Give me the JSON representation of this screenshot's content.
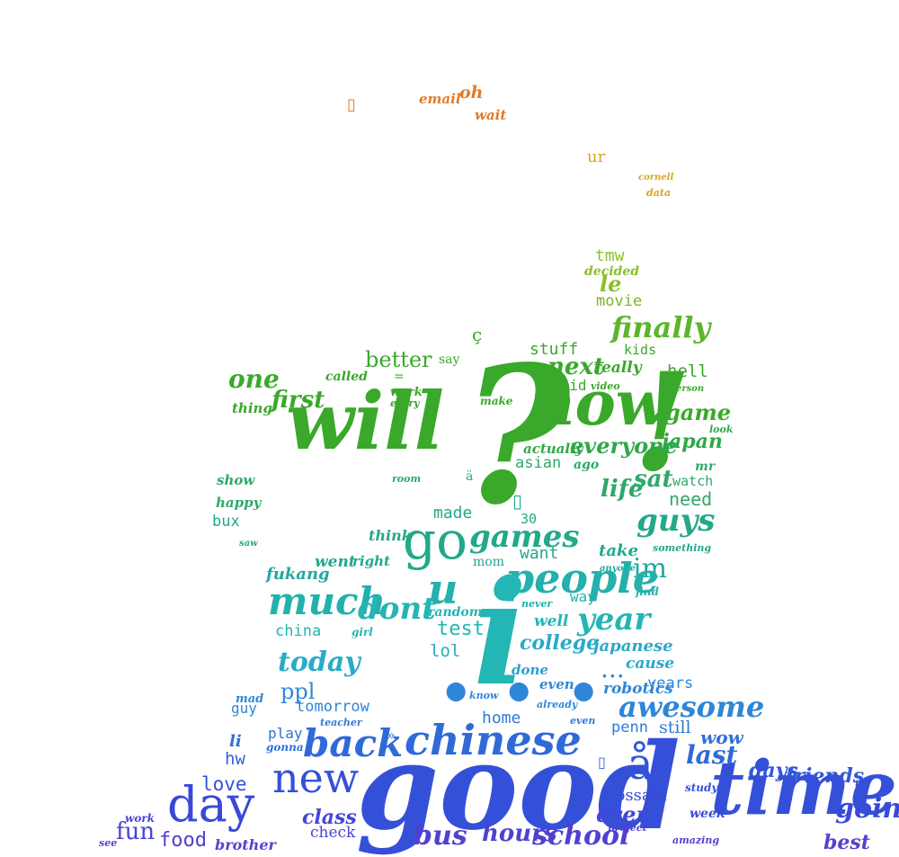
{
  "palette": {
    "orange": "#e07b2a",
    "gold": "#d9a51e",
    "lime": "#8bbf2a",
    "green": "#3aa82a",
    "teal": "#22a88a",
    "cyan": "#24b5b5",
    "blue": "#2f86d8",
    "indigo": "#3550d8",
    "violet": "#5a3fd0"
  },
  "words": {
    "email": "email",
    "oh": "oh",
    "wait": "wait",
    "ur": "ur",
    "cornell": "cornell",
    "data": "data",
    "tmw": "tmw",
    "decided": "decided",
    "le": "le",
    "movie": "movie",
    "finally": "finally",
    "c_cedilla": "ç",
    "stuff": "stuff",
    "kids": "kids",
    "better": "better",
    "say": "say",
    "next": "next",
    "really": "really",
    "hell": "hell",
    "one": "one",
    "called": "called",
    "equals": "=",
    "said": "said",
    "video": "video",
    "person": "person",
    "work_top": "work",
    "every": "every",
    "first": "first",
    "make": "make",
    "question": "?",
    "now": "now",
    "exclaim": "!",
    "game": "game",
    "thing": "thing",
    "will": "will",
    "japan": "japan",
    "look": "look",
    "actually": "actually",
    "everyone": "everyone",
    "asian": "asian",
    "ago": "ago",
    "mr": "mr",
    "show": "show",
    "room": "room",
    "a_umlaut": "ä",
    "life": "life",
    "sat": "sat",
    "watch": "watch",
    "happy": "happy",
    "need": "need",
    "made": "made",
    "bux": "bux",
    "n30": "30",
    "guys": "guys",
    "saw": "saw",
    "think": "think",
    "go": "go",
    "games": "games",
    "something": "something",
    "want": "want",
    "take": "take",
    "went": "went",
    "right": "right",
    "mom": "mom",
    "fukang": "fukang",
    "anyone": "anyone",
    "im": "im",
    "people": "people",
    "u": "u",
    "find": "find",
    "much": "much",
    "never": "never",
    "way": "way",
    "dont": "dont",
    "random": "random",
    "year": "year",
    "china": "china",
    "well": "well",
    "test": "test",
    "girl": "girl",
    "i": "i",
    "college": "college",
    "japanese": "japanese",
    "today": "today",
    "lol": "lol",
    "cause": "cause",
    "done": "done",
    "ellipsis": "...",
    "years": "years",
    "even_a": "even",
    "robotics": "robotics",
    "ppl": "ppl",
    "know": "know",
    "mad": "mad",
    "guy": "guy",
    "tomorrow": "tomorrow",
    "already": "already",
    "awesome": "awesome",
    "home": "home",
    "teacher": "teacher",
    "even_b": "even",
    "penn": "penn",
    "still": "still",
    "play": "play",
    "raquo": "»",
    "wow": "wow",
    "li": "li",
    "gonna": "gonna",
    "back": "back",
    "chinese": "chinese",
    "last": "last",
    "hw": "hw",
    "a_ring": "å",
    "days": "days",
    "friends": "friends",
    "new": "new",
    "till": "till",
    "love": "love",
    "good": "good",
    "study": "study",
    "time": "time",
    "hossain": "hossain",
    "going": "going",
    "day": "day",
    "week": "week",
    "work_bot": "work",
    "class": "class",
    "ever": "ever",
    "fun": "fun",
    "project": "project",
    "check": "check",
    "food": "food",
    "bus": "bus",
    "hours": "hours",
    "school": "school",
    "amazing": "amazing",
    "best": "best",
    "see": "see",
    "brother": "brother"
  }
}
